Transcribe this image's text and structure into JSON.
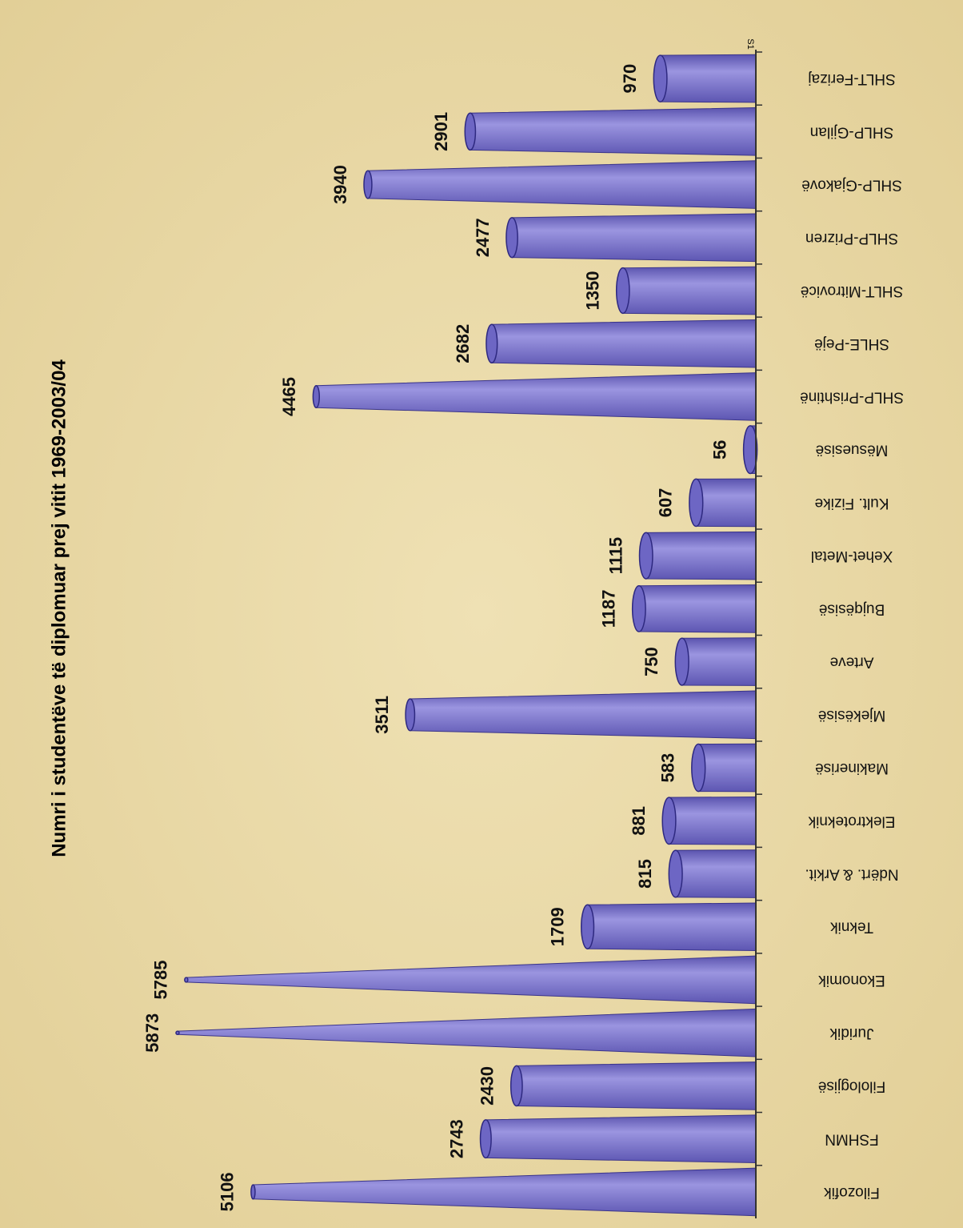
{
  "chart_data": {
    "type": "bar",
    "title": "Numri i studentëve të diplomuar prej vitit 1969-2003/04",
    "series_name": "S1",
    "categories": [
      "Filozofik",
      "FSHMN",
      "Filologjisë",
      "Juridik",
      "Ekonomik",
      "Teknik",
      "Ndërt. & Arkit.",
      "Elektroteknik",
      "Makinerisë",
      "Mjekësisë",
      "Arteve",
      "Bujqësisë",
      "Xehet-Metal",
      "Kult. Fizike",
      "Mësuesisë",
      "SHLP-Prishtinë",
      "SHLE-Pejë",
      "SHLT-Mitrovicë",
      "SHLP-Prizren",
      "SHLP-Gjakovë",
      "SHLP-Gjilan",
      "SHLT-Ferizaj"
    ],
    "values": [
      5106,
      2743,
      2430,
      5873,
      5785,
      1709,
      815,
      881,
      583,
      3511,
      750,
      1187,
      1115,
      607,
      56,
      4465,
      2682,
      1350,
      2477,
      3940,
      2901,
      970
    ],
    "color": "#7b74c9"
  }
}
